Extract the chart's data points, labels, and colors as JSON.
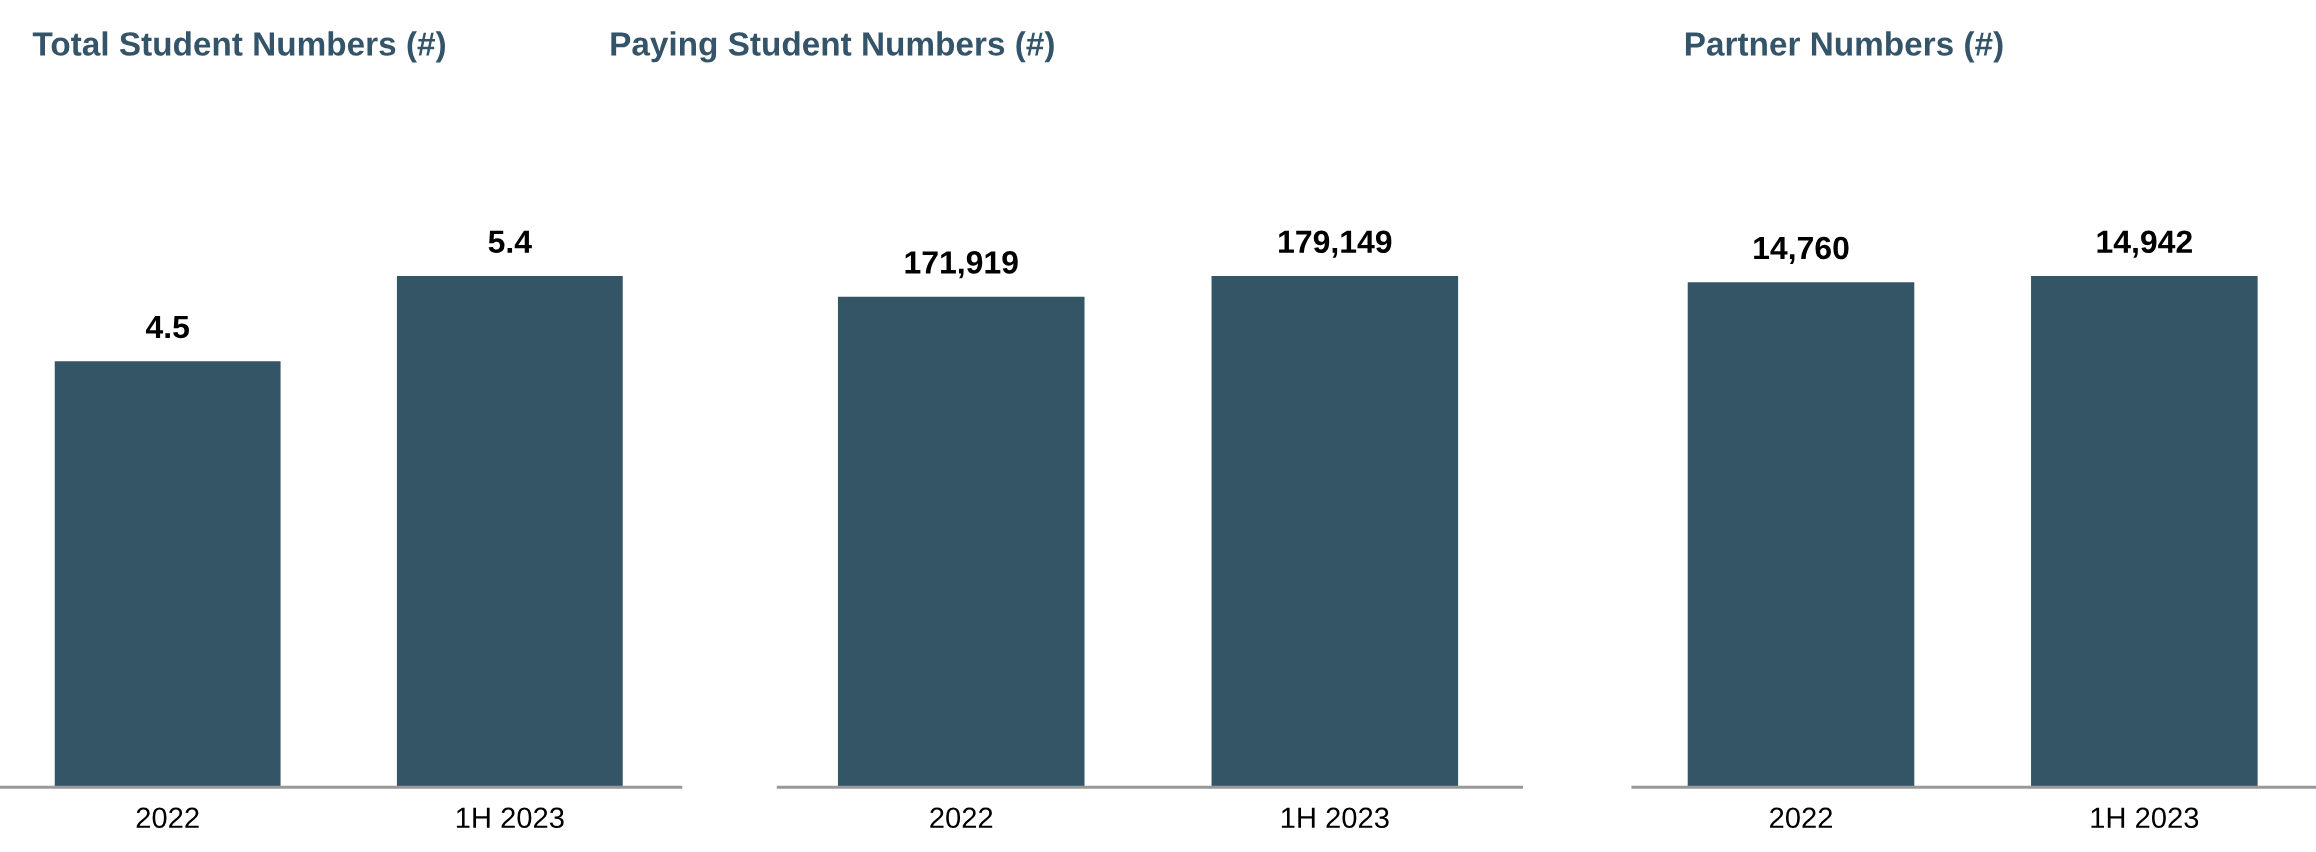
{
  "chart_data": [
    {
      "type": "bar",
      "title": "Total Student Numbers (#)",
      "categories": [
        "2022",
        "1H 2023"
      ],
      "values": [
        4.5,
        5.4
      ],
      "color": "#335566",
      "data_labels": true,
      "tick_labels": "x"
    },
    {
      "type": "bar",
      "title": "Paying Student Numbers (#)",
      "categories": [
        "2022",
        "1H 2023"
      ],
      "values": [
        171919,
        179149
      ],
      "color": "#335566",
      "data_labels": true,
      "tick_labels": "x",
      "value_labels": [
        "171,919",
        "179,149"
      ]
    },
    {
      "type": "bar",
      "title": "Partner Numbers (#)",
      "categories": [
        "2022",
        "1H 2023"
      ],
      "values": [
        14760,
        14942
      ],
      "color": "#335566",
      "data_labels": true,
      "tick_labels": "x",
      "value_labels": [
        "14,760",
        "14,942"
      ]
    }
  ]
}
